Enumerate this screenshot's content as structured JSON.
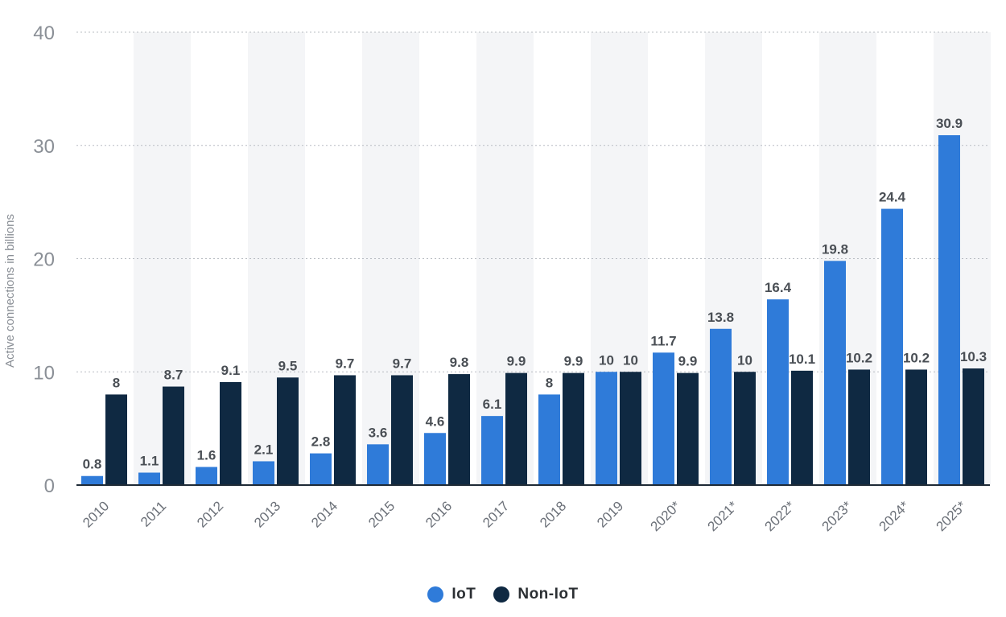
{
  "chart_data": {
    "type": "bar",
    "ylabel": "Active connections in billions",
    "xlabel": "",
    "ylim": [
      0,
      40
    ],
    "yticks": [
      0,
      10,
      20,
      30,
      40
    ],
    "grid": true,
    "legend_position": "bottom",
    "categories": [
      "2010",
      "2011",
      "2012",
      "2013",
      "2014",
      "2015",
      "2016",
      "2017",
      "2018",
      "2019",
      "2020*",
      "2021*",
      "2022*",
      "2023*",
      "2024*",
      "2025*"
    ],
    "series": [
      {
        "name": "IoT",
        "color": "#2f7bd9",
        "values": [
          0.8,
          1.1,
          1.6,
          2.1,
          2.8,
          3.6,
          4.6,
          6.1,
          8,
          10,
          11.7,
          13.8,
          16.4,
          19.8,
          24.4,
          30.9
        ]
      },
      {
        "name": "Non-IoT",
        "color": "#0f2942",
        "values": [
          8,
          8.7,
          9.1,
          9.5,
          9.7,
          9.7,
          9.8,
          9.9,
          9.9,
          10,
          9.9,
          10,
          10.1,
          10.2,
          10.2,
          10.3
        ]
      }
    ]
  },
  "legend": {
    "iot_label": "IoT",
    "noniot_label": "Non-IoT"
  }
}
